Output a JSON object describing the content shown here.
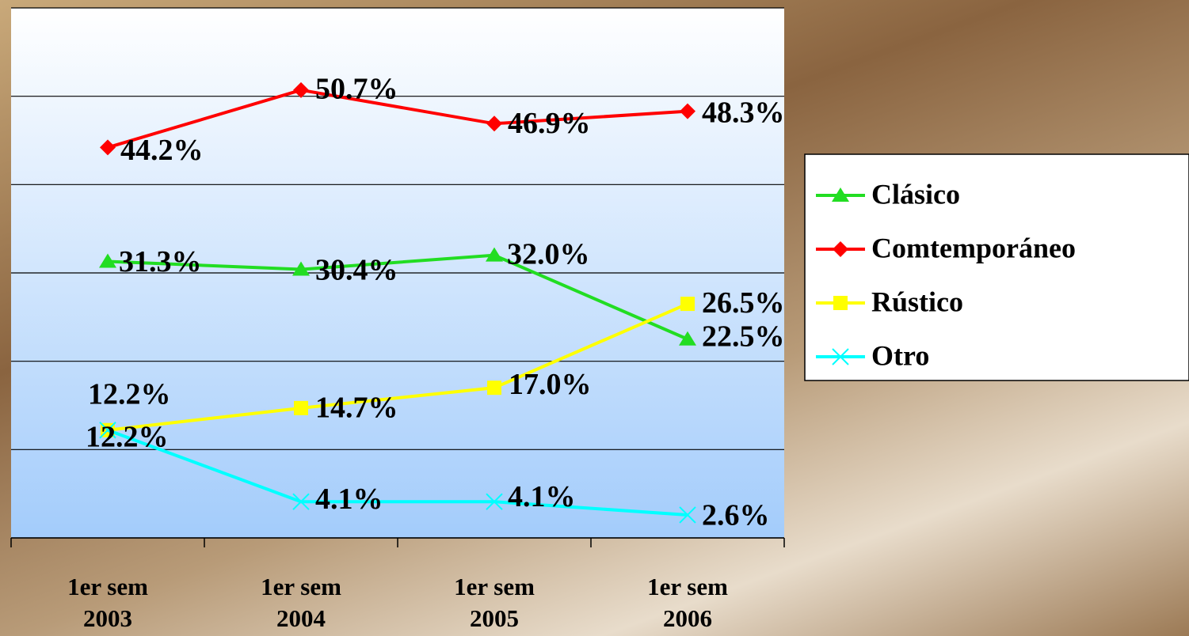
{
  "chart_data": {
    "type": "line",
    "categories": [
      "1er sem 2003",
      "1er sem 2004",
      "1er sem 2005",
      "1er sem 2006"
    ],
    "series": [
      {
        "name": "Clásico",
        "color": "#22dd22",
        "marker": "triangle",
        "values": [
          31.3,
          30.4,
          32.0,
          22.5
        ],
        "value_labels": [
          "31.3%",
          "30.4%",
          "32.0%",
          "22.5%"
        ]
      },
      {
        "name": "Comtemporáneo",
        "color": "#ff0000",
        "marker": "diamond",
        "values": [
          44.2,
          50.7,
          46.9,
          48.3
        ],
        "value_labels": [
          "44.2%",
          "50.7%",
          "46.9%",
          "48.3%"
        ]
      },
      {
        "name": "Rústico",
        "color": "#ffff00",
        "marker": "square",
        "values": [
          12.2,
          14.7,
          17.0,
          26.5
        ],
        "value_labels": [
          "12.2%",
          "14.7%",
          "17.0%",
          "26.5%"
        ]
      },
      {
        "name": "Otro",
        "color": "#00ffff",
        "marker": "x",
        "values": [
          12.2,
          4.1,
          4.1,
          2.6
        ],
        "value_labels": [
          "12.2%",
          "4.1%",
          "4.1%",
          "2.6%"
        ]
      }
    ],
    "ylim": [
      0,
      60
    ],
    "yticks": [
      0,
      10,
      20,
      30,
      40,
      50,
      60
    ],
    "grid": true,
    "legend": "right"
  }
}
